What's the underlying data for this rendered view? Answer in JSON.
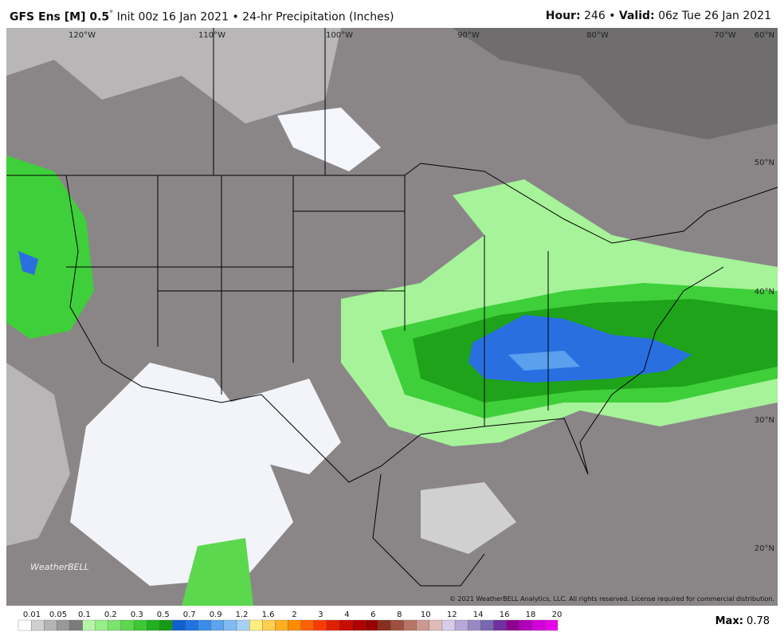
{
  "header": {
    "model": "GFS Ens [M] 0.5",
    "degree": "°",
    "init": "Init 00z 16 Jan 2021",
    "sep": "•",
    "product": "24-hr Precipitation (Inches)",
    "hour_label": "Hour:",
    "hour": "246",
    "sep2": "•",
    "valid_label": "Valid:",
    "valid": "06z Tue 26 Jan 2021"
  },
  "map": {
    "lon_labels": [
      "120°W",
      "110°W",
      "100°W",
      "90°W",
      "80°W",
      "70°W"
    ],
    "lat_labels": [
      "60°N",
      "50°N",
      "40°N",
      "30°N",
      "20°N"
    ],
    "logo": "WeatherBELL",
    "copyright": "© 2021 WeatherBELL Analytics, LLC. All rights reserved. License required for commercial distribution."
  },
  "legend": {
    "labels": [
      "0.01",
      "0.05",
      "0.1",
      "0.2",
      "0.3",
      "0.5",
      "0.7",
      "0.9",
      "1.2",
      "1.6",
      "2",
      "3",
      "4",
      "6",
      "8",
      "10",
      "12",
      "14",
      "16",
      "18",
      "20"
    ],
    "colors": [
      "#ffffff",
      "#d0d0d0",
      "#b4b4b4",
      "#989898",
      "#7c7c7c",
      "#b4f5a8",
      "#98ee8a",
      "#7ae46c",
      "#5cd84e",
      "#3cc834",
      "#22b01e",
      "#169a16",
      "#1060d0",
      "#1e74e0",
      "#3a8ce8",
      "#5ca4ee",
      "#80bcf2",
      "#a4d2f6",
      "#ffee80",
      "#ffd050",
      "#ffb020",
      "#ff8c00",
      "#ff6000",
      "#f83c00",
      "#e02000",
      "#c80c00",
      "#b00000",
      "#980000",
      "#883020",
      "#a05040",
      "#b87468",
      "#cc9890",
      "#e0bcb8",
      "#d8cce8",
      "#b8a8d8",
      "#9888c4",
      "#7868b0",
      "#7030a0",
      "#900090",
      "#b000b8",
      "#d000d8",
      "#e800e8"
    ],
    "max_label": "Max:",
    "max": "0.78"
  }
}
